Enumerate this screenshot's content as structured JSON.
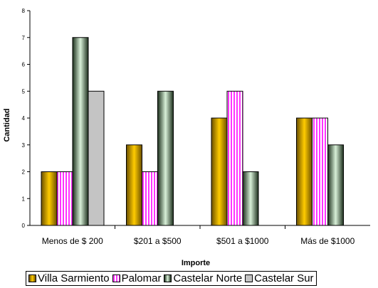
{
  "chart_data": {
    "type": "bar",
    "categories": [
      "Menos de $ 200",
      "$201 a $500",
      "$501 a $1000",
      "Más de $1000"
    ],
    "series": [
      {
        "name": "Villa Sarmiento",
        "values": [
          2,
          3,
          4,
          4
        ],
        "color": "#d8a300",
        "style": "gold"
      },
      {
        "name": "Palomar",
        "values": [
          2,
          2,
          5,
          4
        ],
        "color": "#ff33ff",
        "style": "stripes"
      },
      {
        "name": "Castelar Norte",
        "values": [
          7,
          5,
          2,
          3
        ],
        "color": "#2f4a2f",
        "style": "green"
      },
      {
        "name": "Castelar Sur",
        "values": [
          5,
          null,
          null,
          null
        ],
        "color": "#c0c0c0",
        "style": "gray"
      }
    ],
    "xlabel": "Importe",
    "ylabel": "Cantidad",
    "ylim": [
      0,
      8
    ],
    "yticks": [
      0,
      1,
      2,
      3,
      4,
      5,
      6,
      7,
      8
    ],
    "grid": false,
    "legend_position": "bottom"
  }
}
